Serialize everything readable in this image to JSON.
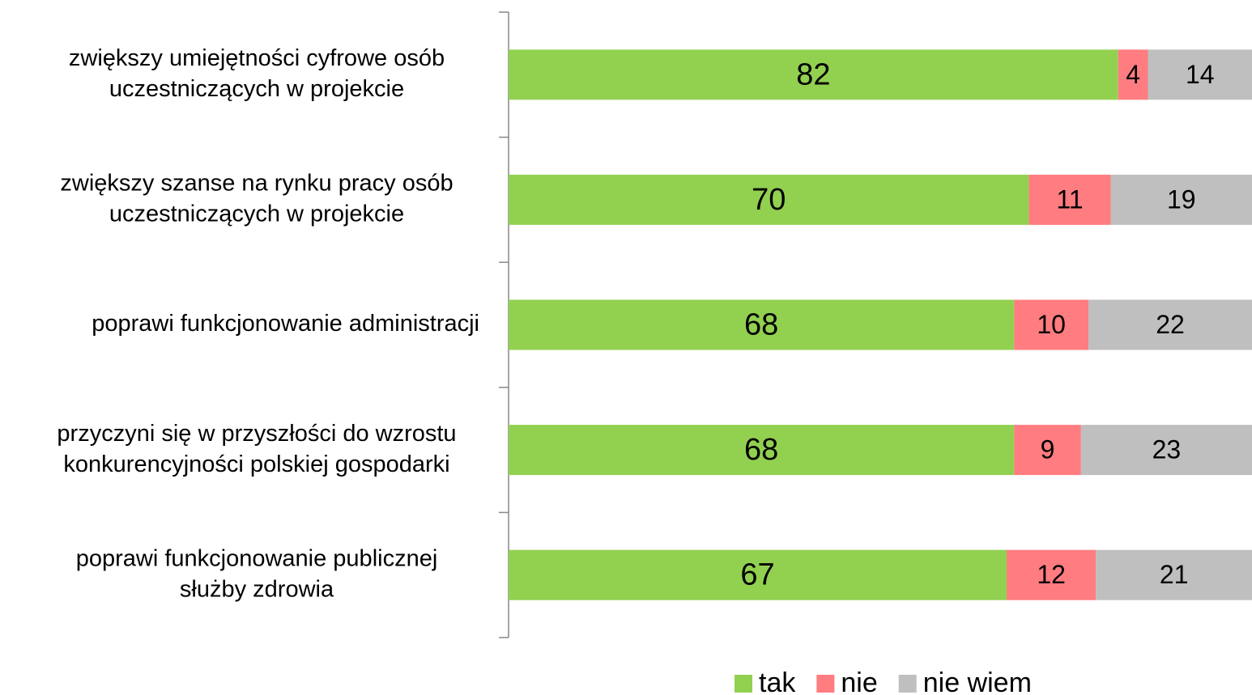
{
  "chart_data": {
    "type": "stacked_bar_horizontal",
    "categories": [
      [
        "zwiększy umiejętności cyfrowe osób",
        "uczestniczących w projekcie"
      ],
      [
        "zwiększy szanse na rynku pracy osób",
        "uczestniczących w projekcie"
      ],
      [
        "poprawi funkcjonowanie administracji"
      ],
      [
        "przyczyni się w przyszłości do wzrostu",
        "konkurencyjności polskiej gospodarki"
      ],
      [
        "poprawi funkcjonowanie publicznej",
        "służby zdrowia"
      ]
    ],
    "series": [
      {
        "name": "tak",
        "color": "#92d050",
        "values": [
          82,
          70,
          68,
          68,
          67
        ]
      },
      {
        "name": "nie",
        "color": "#ff7c80",
        "values": [
          4,
          11,
          10,
          9,
          12
        ]
      },
      {
        "name": "nie wiem",
        "color": "#bfbfbf",
        "values": [
          14,
          19,
          22,
          23,
          21
        ]
      }
    ],
    "xlim": [
      0,
      100
    ],
    "legend": "bottom"
  }
}
